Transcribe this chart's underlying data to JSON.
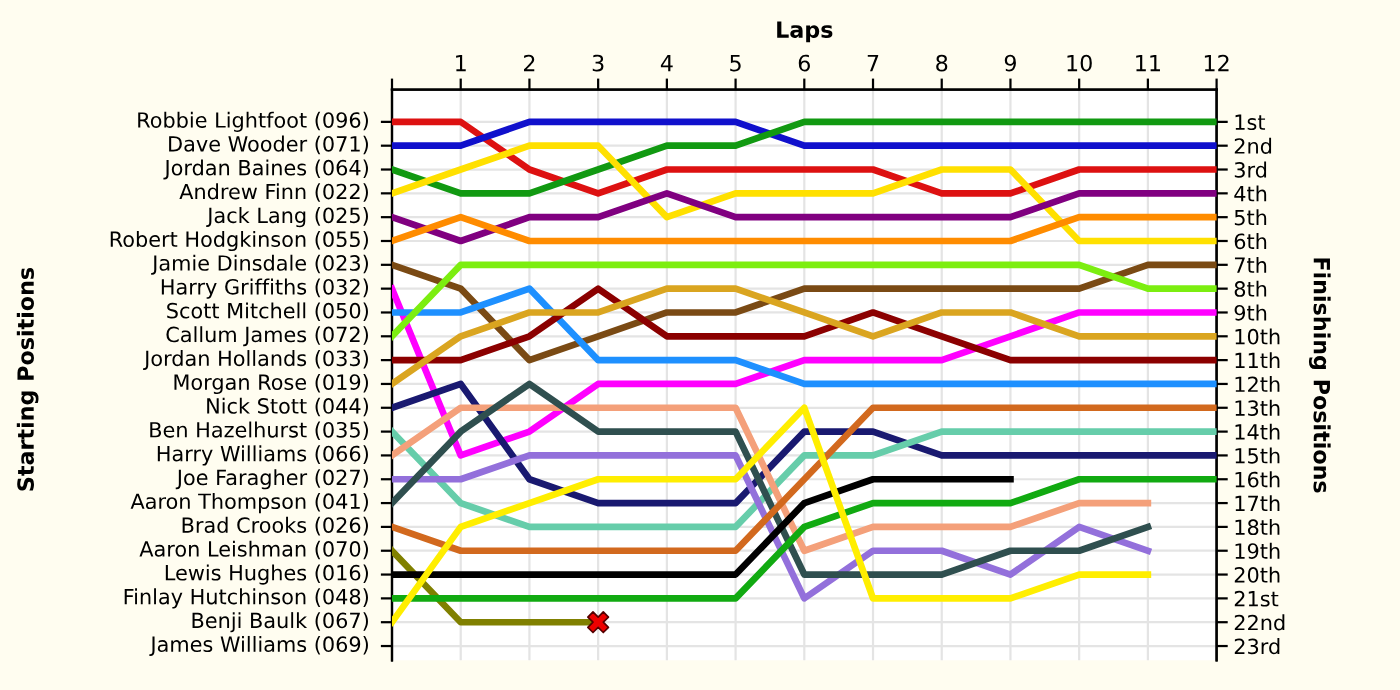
{
  "chart_data": {
    "type": "line",
    "xlabel": "Laps",
    "y2label": "Finishing Positions",
    "x": [
      0,
      1,
      2,
      3,
      4,
      5,
      6,
      7,
      8,
      9,
      10,
      11,
      12
    ],
    "xlim": [
      0,
      12
    ],
    "xticks": [
      {
        "value": 0,
        "label": null
      },
      1,
      2,
      3,
      4,
      5,
      6,
      7,
      8,
      9,
      10,
      11,
      12
    ],
    "y2lim": [
      23.6,
      -0.35
    ],
    "y2ticks": [
      {
        "value": 1,
        "label": "1st"
      },
      {
        "value": 2,
        "label": "2nd"
      },
      {
        "value": 3,
        "label": "3rd"
      },
      {
        "value": 4,
        "label": "4th"
      },
      {
        "value": 5,
        "label": "5th"
      },
      {
        "value": 6,
        "label": "6th"
      },
      {
        "value": 7,
        "label": "7th"
      },
      {
        "value": 8,
        "label": "8th"
      },
      {
        "value": 9,
        "label": "9th"
      },
      {
        "value": 10,
        "label": "10th"
      },
      {
        "value": 11,
        "label": "11th"
      },
      {
        "value": 12,
        "label": "12th"
      },
      {
        "value": 13,
        "label": "13th"
      },
      {
        "value": 14,
        "label": "14th"
      },
      {
        "value": 15,
        "label": "15th"
      },
      {
        "value": 16,
        "label": "16th"
      },
      {
        "value": 17,
        "label": "17th"
      },
      {
        "value": 18,
        "label": "18th"
      },
      {
        "value": 19,
        "label": "19th"
      },
      {
        "value": 20,
        "label": "20th"
      },
      {
        "value": 21,
        "label": "21st"
      },
      {
        "value": 22,
        "label": "22nd"
      },
      {
        "value": 23,
        "label": "23rd"
      }
    ],
    "grid": true,
    "legend": false,
    "marker": "none",
    "line_style": "solid",
    "annotations": [
      "Starting Positions",
      "Robbie Lightfoot (096)",
      "Dave Wooder (071)",
      "Jordan Baines (064)",
      "Andrew Finn (022)",
      "Jack Lang (025)",
      "Robert Hodgkinson (055)",
      "Jamie Dinsdale (023)",
      "Harry Griffiths (032)",
      "Scott Mitchell (050)",
      "Callum James (072)",
      "Jordan Hollands (033)",
      "Morgan Rose (019)",
      "Nick Stott (044)",
      "Ben Hazelhurst (035)",
      "Harry Williams (066)",
      "Joe Faragher (027)",
      "Aaron Thompson (041)",
      "Brad Crooks (026)",
      "Aaron Leishman (070)",
      "Lewis Hughes (016)",
      "Finlay Hutchinson (048)",
      "Benji Baulk (067)",
      "James Williams (069)"
    ],
    "series": [
      {
        "axis": "y2",
        "color": "#dd1111",
        "values": [
          1,
          1,
          3,
          4,
          3,
          3,
          3,
          3,
          4,
          4,
          3,
          3,
          3
        ]
      },
      {
        "axis": "y2",
        "color": "#1010cc",
        "values": [
          2,
          2,
          1,
          1,
          1,
          1,
          2,
          2,
          2,
          2,
          2,
          2,
          2
        ]
      },
      {
        "axis": "y2",
        "color": "#119911",
        "values": [
          3,
          4,
          4,
          3,
          2,
          2,
          1,
          1,
          1,
          1,
          1,
          1,
          1
        ]
      },
      {
        "axis": "y2",
        "color": "#ffe000",
        "values": [
          4,
          3,
          2,
          2,
          5,
          4,
          4,
          4,
          3,
          3,
          6,
          6,
          6
        ]
      },
      {
        "axis": "y2",
        "color": "#800080",
        "values": [
          5,
          6,
          5,
          5,
          4,
          5,
          5,
          5,
          5,
          5,
          4,
          4,
          4
        ]
      },
      {
        "axis": "y2",
        "color": "#ff8c00",
        "values": [
          6,
          5,
          6,
          6,
          6,
          6,
          6,
          6,
          6,
          6,
          5,
          5,
          5
        ]
      },
      {
        "axis": "y2",
        "color": "#7a4a14",
        "values": [
          7,
          8,
          11,
          10,
          9,
          9,
          8,
          8,
          8,
          8,
          8,
          7,
          7
        ]
      },
      {
        "axis": "y2",
        "color": "#ff00ff",
        "values": [
          8,
          15,
          14,
          12,
          12,
          12,
          11,
          11,
          11,
          10,
          9,
          9,
          9
        ]
      },
      {
        "axis": "y2",
        "color": "#1e90ff",
        "values": [
          9,
          9,
          8,
          11,
          11,
          11,
          12,
          12,
          12,
          12,
          12,
          12,
          12
        ]
      },
      {
        "axis": "y2",
        "color": "#7cee10",
        "values": [
          10,
          7,
          7,
          7,
          7,
          7,
          7,
          7,
          7,
          7,
          7,
          8,
          8
        ]
      },
      {
        "axis": "y2",
        "color": "#8b0000",
        "values": [
          11,
          11,
          10,
          8,
          10,
          10,
          10,
          9,
          10,
          11,
          11,
          11,
          11
        ]
      },
      {
        "axis": "y2",
        "color": "#daa520",
        "values": [
          12,
          10,
          9,
          9,
          8,
          8,
          9,
          10,
          9,
          9,
          10,
          10,
          10
        ]
      },
      {
        "axis": "y2",
        "color": "#191970",
        "values": [
          13,
          12,
          16,
          17,
          17,
          17,
          14,
          14,
          15,
          15,
          15,
          15,
          15
        ]
      },
      {
        "axis": "y2",
        "color": "#66cdaa",
        "values": [
          14,
          17,
          18,
          18,
          18,
          18,
          15,
          15,
          14,
          14,
          14,
          14,
          14
        ]
      },
      {
        "axis": "y2",
        "color": "#f4a07a",
        "values": [
          15,
          13,
          13,
          13,
          13,
          13,
          19,
          18,
          18,
          18,
          17,
          17,
          null
        ]
      },
      {
        "axis": "y2",
        "color": "#9370db",
        "values": [
          16,
          16,
          15,
          15,
          15,
          15,
          21,
          19,
          19,
          20,
          18,
          19,
          null
        ]
      },
      {
        "axis": "y2",
        "color": "#2f4f4f",
        "values": [
          17,
          14,
          12,
          14,
          14,
          14,
          20,
          20,
          20,
          19,
          19,
          18,
          null
        ]
      },
      {
        "axis": "y2",
        "color": "#d2691e",
        "values": [
          18,
          19,
          19,
          19,
          19,
          19,
          16,
          13,
          13,
          13,
          13,
          13,
          13
        ]
      },
      {
        "axis": "y2",
        "color": "#808000",
        "values": [
          19,
          22,
          22,
          22,
          null,
          null,
          null,
          null,
          null,
          null,
          null,
          null,
          null
        ]
      },
      {
        "axis": "y2",
        "color": "#000000",
        "values": [
          20,
          20,
          20,
          20,
          20,
          20,
          17,
          16,
          16,
          16,
          null,
          null,
          null
        ]
      },
      {
        "axis": "y2",
        "color": "#11aa11",
        "values": [
          21,
          21,
          21,
          21,
          21,
          21,
          18,
          17,
          17,
          17,
          16,
          16,
          16
        ]
      },
      {
        "axis": "y2",
        "color": "#ffee00",
        "values": [
          22,
          18,
          17,
          16,
          16,
          16,
          13,
          21,
          21,
          21,
          20,
          20,
          null
        ]
      },
      {
        "type": "scatter",
        "axis": "y2",
        "marker": "cross",
        "color": "#ee0000",
        "x": [
          3
        ],
        "values": [
          22
        ]
      }
    ]
  }
}
